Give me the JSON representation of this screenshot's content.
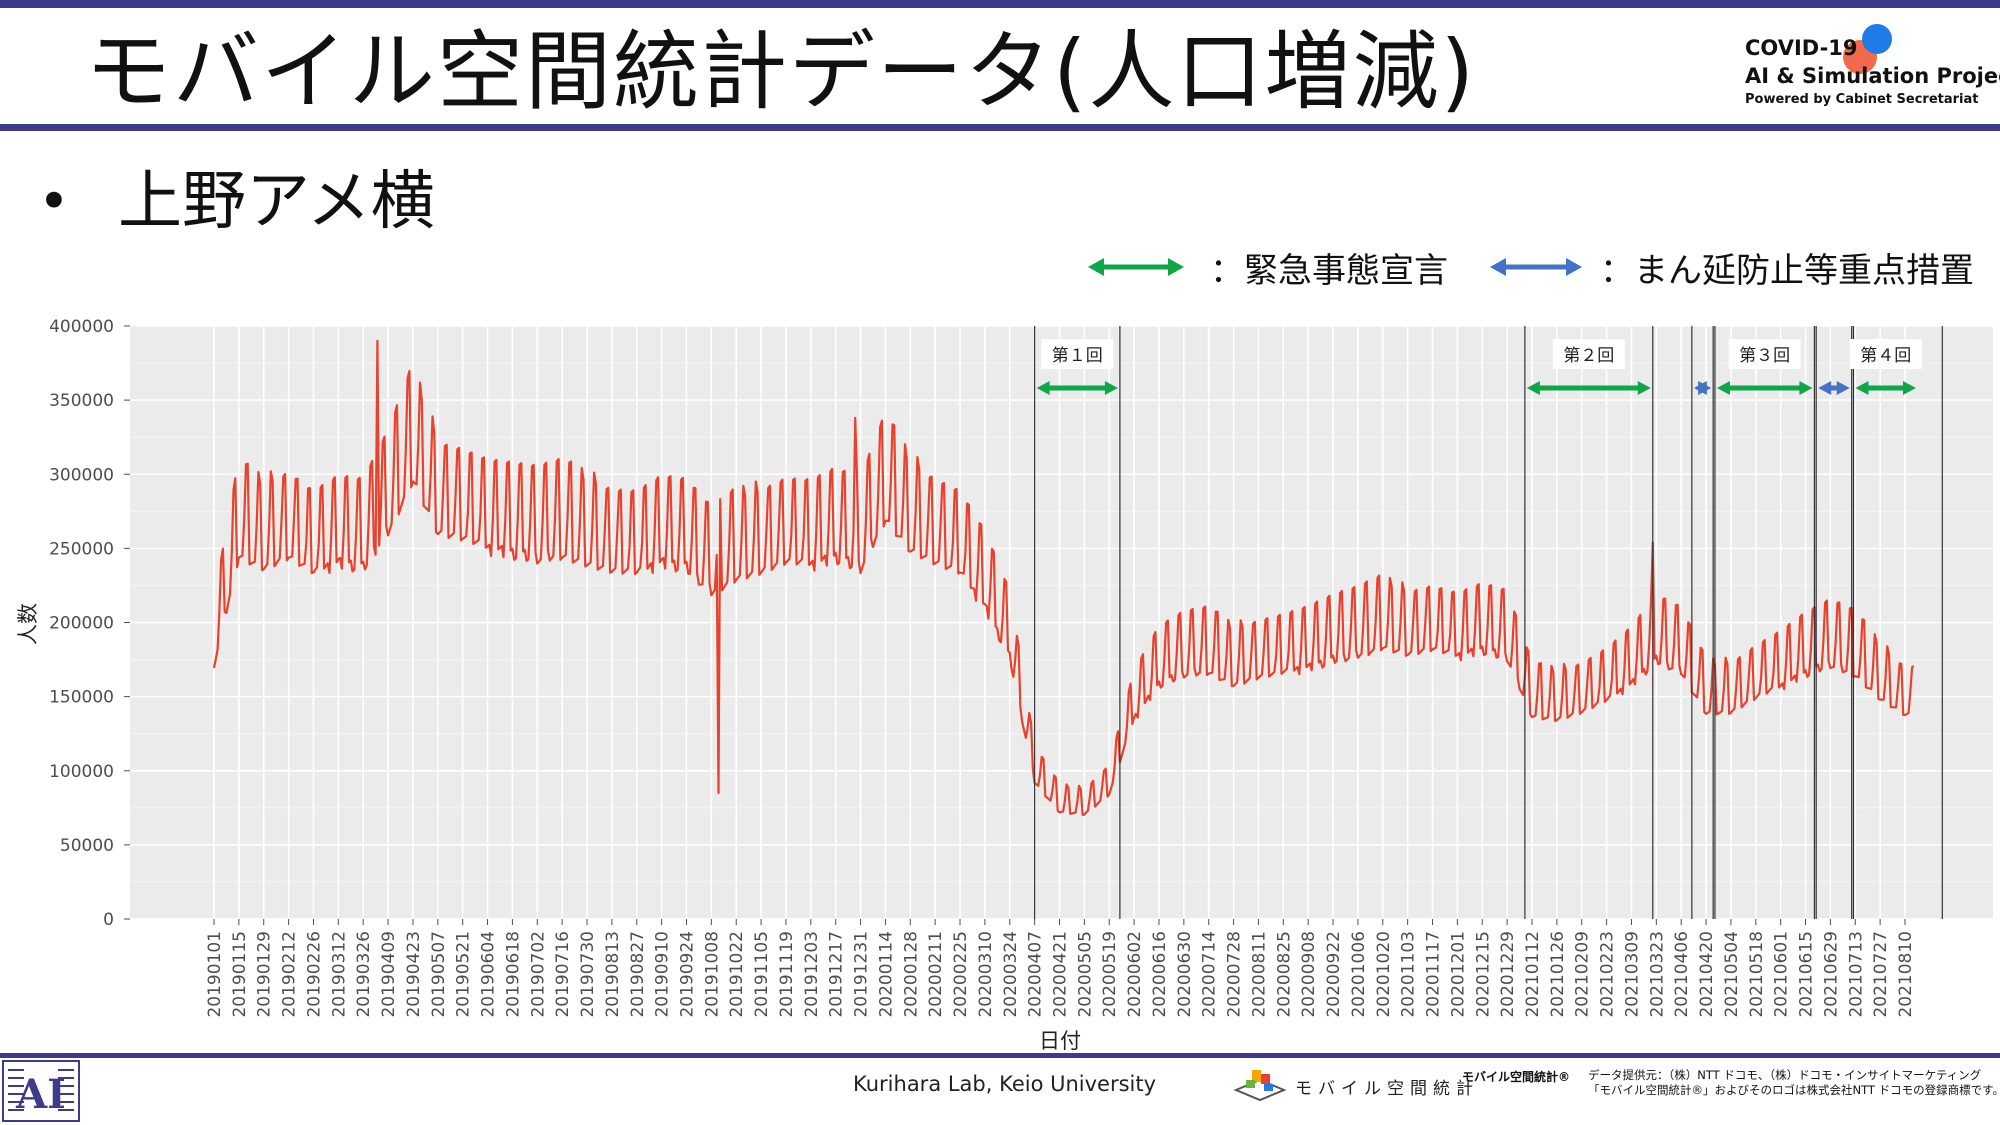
{
  "slide": {
    "title": "モバイル空間統計データ(人口増減)",
    "subtitle": "上野アメ横",
    "bullet": "•"
  },
  "brand": {
    "line1": "COVID-19",
    "line2": "AI & Simulation Project",
    "line3": "Powered by Cabinet Secretariat"
  },
  "legend": [
    {
      "label": "：緊急事態宣言",
      "color": "#0fa64a"
    },
    {
      "label": "：まん延防止等重点措置",
      "color": "#4472c4"
    }
  ],
  "footer": {
    "lab": "Kurihara Lab, Keio University",
    "logo_text": "モバイル空間統計",
    "mark": "モバイル空間統計®",
    "credit_line1": "データ提供元：（株）NTT ドコモ、（株）ドコモ・インサイトマーケティング",
    "credit_line2": "「モバイル空間統計®」およびそのロゴは株式会社NTT ドコモの登録商標です。"
  },
  "chart_data": {
    "type": "line",
    "title": "",
    "xlabel": "日付",
    "ylabel": "人数",
    "ylim": [
      0,
      400000
    ],
    "yticks": [
      0,
      50000,
      100000,
      150000,
      200000,
      250000,
      300000,
      350000,
      400000
    ],
    "xtick_labels": [
      "20190101",
      "20190115",
      "20190129",
      "20190212",
      "20190226",
      "20190312",
      "20190326",
      "20190409",
      "20190423",
      "20190507",
      "20190521",
      "20190604",
      "20190618",
      "20190702",
      "20190716",
      "20190730",
      "20190813",
      "20190827",
      "20190910",
      "20190924",
      "20191008",
      "20191022",
      "20191105",
      "20191119",
      "20191203",
      "20191217",
      "20191231",
      "20200114",
      "20200128",
      "20200211",
      "20200225",
      "20200310",
      "20200324",
      "20200407",
      "20200421",
      "20200505",
      "20200519",
      "20200602",
      "20200616",
      "20200630",
      "20200714",
      "20200728",
      "20200811",
      "20200825",
      "20200908",
      "20200922",
      "20201006",
      "20201020",
      "20201103",
      "20201117",
      "20201201",
      "20201215",
      "20201229",
      "20210112",
      "20210126",
      "20210209",
      "20210223",
      "20210309",
      "20210323",
      "20210406",
      "20210420",
      "20210504",
      "20210518",
      "20210601",
      "20210615",
      "20210629",
      "20210713",
      "20210727",
      "20210810"
    ],
    "grid": true,
    "line_color": "#e8412c",
    "series": [
      {
        "x_start": "2019-01-01",
        "x_end": "2021-08-15",
        "step": "14 days",
        "values": [
          185000,
          265000,
          255000,
          262000,
          250000,
          258000,
          255000,
          282000,
          320000,
          280000,
          275000,
          268000,
          265000,
          262000,
          265000,
          258000,
          252000,
          250000,
          258000,
          255000,
          238000,
          248000,
          252000,
          258000,
          256000,
          262000,
          255000,
          292000,
          268000,
          258000,
          250000,
          226000,
          190000,
          100000,
          78000,
          76000,
          90000,
          145000,
          170000,
          178000,
          180000,
          170000,
          175000,
          178000,
          182000,
          188000,
          192000,
          198000,
          192000,
          195000,
          190000,
          195000,
          190000,
          148000,
          145000,
          150000,
          158000,
          170000,
          188000,
          180000,
          150000,
          150000,
          160000,
          168000,
          178000,
          185000,
          178000,
          160000,
          148000
        ],
        "notable_peaks": [
          {
            "x": "2019-04-03",
            "y": 390000
          },
          {
            "x": "2019-10-12",
            "y": 85000
          },
          {
            "x": "2019-12-28",
            "y": 338000
          },
          {
            "x": "2021-03-21",
            "y": 254000
          }
        ]
      }
    ],
    "periods": [
      {
        "label": "第１回",
        "type": "緊急事態宣言",
        "start": "2020-04-07",
        "end": "2020-05-25"
      },
      {
        "label": "第２回",
        "type": "緊急事態宣言",
        "start": "2021-01-08",
        "end": "2021-03-21"
      },
      {
        "type": "まん延防止等重点措置",
        "start": "2021-04-12",
        "end": "2021-04-24"
      },
      {
        "label": "第３回",
        "type": "緊急事態宣言",
        "start": "2021-04-25",
        "end": "2021-06-20"
      },
      {
        "type": "まん延防止等重点措置",
        "start": "2021-06-21",
        "end": "2021-07-11"
      },
      {
        "label": "第４回",
        "type": "緊急事態宣言",
        "start": "2021-07-12",
        "end": "2021-08-31"
      }
    ]
  }
}
